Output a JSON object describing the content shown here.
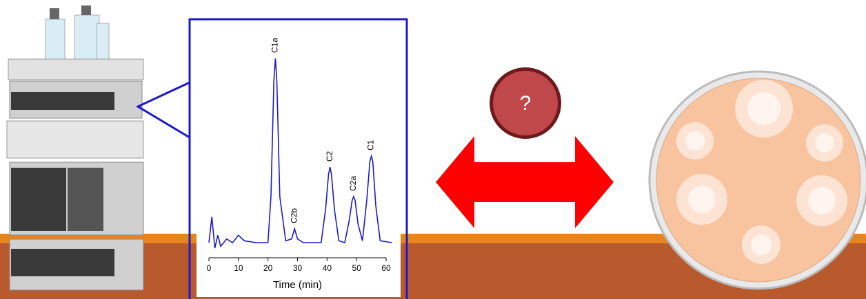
{
  "chart_data": {
    "type": "line",
    "xlabel": "Time (min)",
    "xlim": [
      -2,
      64
    ],
    "xticks": [
      0,
      10,
      20,
      30,
      40,
      50,
      60
    ],
    "ylim": [
      0,
      100
    ],
    "series": [
      {
        "name": "trace",
        "color": "#1a1acc",
        "x": [
          0,
          1,
          2,
          3,
          4,
          6,
          8,
          10,
          12,
          16,
          20,
          21,
          22,
          22.5,
          23,
          24,
          26,
          28,
          29,
          30,
          32,
          38,
          39.5,
          40.5,
          41,
          41.5,
          42.5,
          44,
          46,
          47.5,
          48.5,
          49,
          49.5,
          50.5,
          52,
          53.5,
          54.5,
          55,
          55.5,
          56.5,
          58,
          62
        ],
        "values": [
          0,
          14,
          -3,
          4,
          -2,
          2,
          0,
          4,
          1,
          0,
          0,
          25,
          88,
          100,
          88,
          25,
          1,
          2,
          7.5,
          2,
          0,
          0,
          18,
          37,
          41,
          37,
          18,
          1,
          0,
          12,
          23,
          25,
          23,
          10,
          1,
          24,
          44,
          47,
          44,
          20,
          1,
          0
        ]
      }
    ],
    "annotations": [
      {
        "label": "C1a",
        "x": 22.5,
        "y": 100
      },
      {
        "label": "C2b",
        "x": 29,
        "y": 7.5
      },
      {
        "label": "C2",
        "x": 41,
        "y": 41
      },
      {
        "label": "C2a",
        "x": 49,
        "y": 25
      },
      {
        "label": "C1",
        "x": 55,
        "y": 47
      }
    ]
  },
  "badge": "?"
}
